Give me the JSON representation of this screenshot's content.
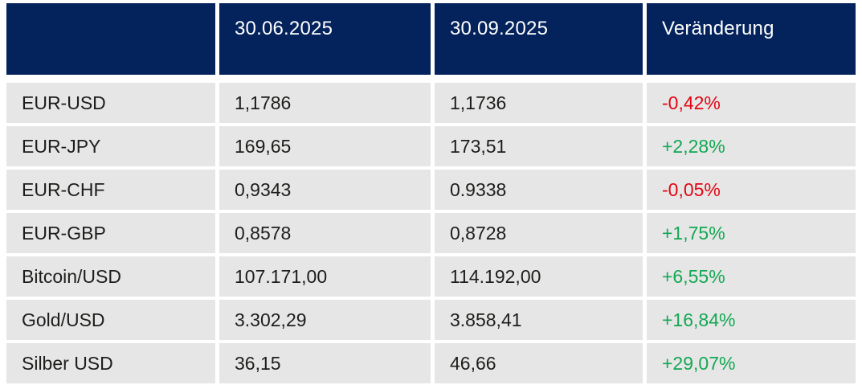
{
  "chart_data": {
    "type": "table",
    "columns": [
      "",
      "30.06.2025",
      "30.09.2025",
      "Veränderung"
    ],
    "rows": [
      {
        "label": "EUR-USD",
        "values": [
          "1,1786",
          "1,1736"
        ],
        "change": "-0,42%",
        "trend": "down"
      },
      {
        "label": "EUR-JPY",
        "values": [
          "169,65",
          "173,51"
        ],
        "change": "+2,28%",
        "trend": "up"
      },
      {
        "label": "EUR-CHF",
        "values": [
          "0,9343",
          "0.9338"
        ],
        "change": "-0,05%",
        "trend": "down"
      },
      {
        "label": "EUR-GBP",
        "values": [
          "0,8578",
          "0,8728"
        ],
        "change": "+1,75%",
        "trend": "up"
      },
      {
        "label": "Bitcoin/USD",
        "values": [
          "107.171,00",
          "114.192,00"
        ],
        "change": "+6,55%",
        "trend": "up"
      },
      {
        "label": "Gold/USD",
        "values": [
          "3.302,29",
          "3.858,41"
        ],
        "change": "+16,84%",
        "trend": "up"
      },
      {
        "label": "Silber USD",
        "values": [
          "36,15",
          "46,66"
        ],
        "change": "+29,07%",
        "trend": "up"
      }
    ]
  },
  "colors": {
    "header_bg": "#04235c",
    "row_bg": "#e6e6e6",
    "header_text": "#ffffff",
    "text": "#1d1d1b",
    "positive": "#13a853",
    "negative": "#e30613",
    "page_bg": "#ffffff"
  }
}
